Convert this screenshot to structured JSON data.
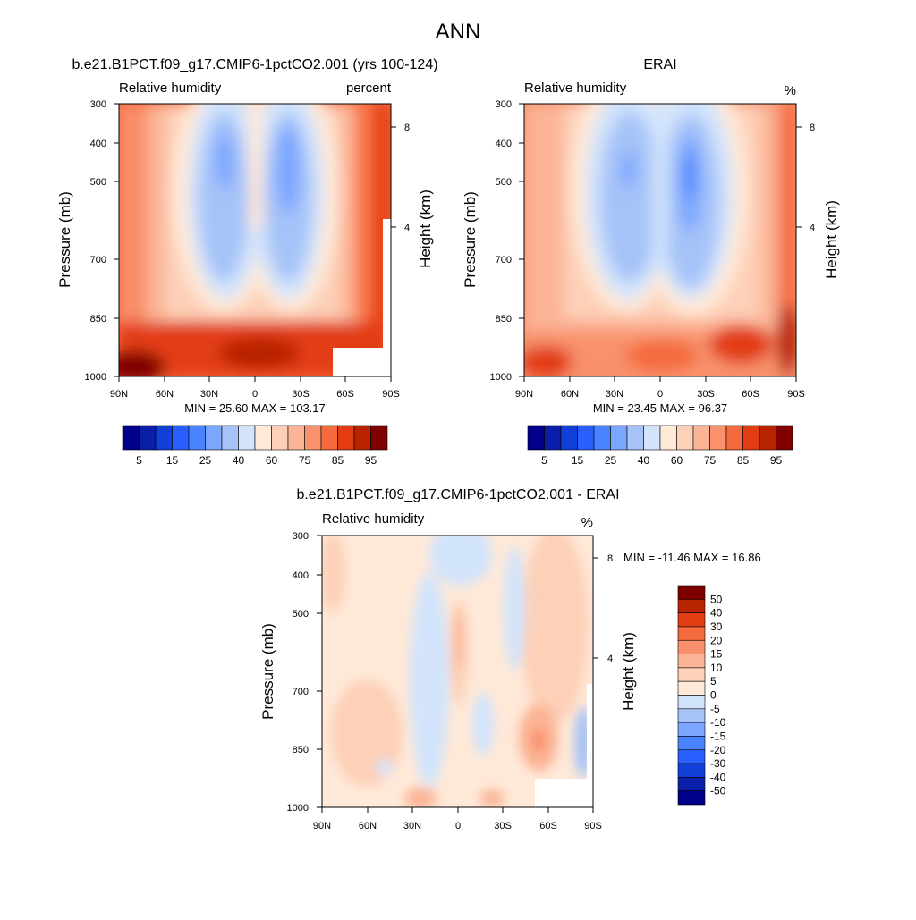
{
  "main_title": "ANN",
  "chart_data": [
    {
      "type": "heatmap",
      "id": "model",
      "title": "b.e21.B1PCT.f09_g17.CMIP6-1pctCO2.001 (yrs 100-124)",
      "left_label": "Relative humidity",
      "right_label": "percent",
      "ylabel": "Pressure (mb)",
      "ylabel_right": "Height (km)",
      "x_ticks": [
        "90N",
        "60N",
        "30N",
        "0",
        "30S",
        "60S",
        "90S"
      ],
      "y_ticks": [
        "300",
        "400",
        "500",
        "700",
        "850",
        "1000"
      ],
      "y_ticks_right": [
        "8",
        "4"
      ],
      "stats": "MIN =  25.60  MAX = 103.17",
      "colorbar_labels": [
        "5",
        "15",
        "25",
        "40",
        "60",
        "75",
        "85",
        "95"
      ],
      "ylim": [
        1000,
        300
      ],
      "xlim": [
        90,
        -90
      ]
    },
    {
      "type": "heatmap",
      "id": "obs",
      "title": "ERAI",
      "left_label": "Relative humidity",
      "right_label": "%",
      "ylabel": "Pressure (mb)",
      "ylabel_right": "Height (km)",
      "x_ticks": [
        "90N",
        "60N",
        "30N",
        "0",
        "30S",
        "60S",
        "90S"
      ],
      "y_ticks": [
        "300",
        "400",
        "500",
        "700",
        "850",
        "1000"
      ],
      "y_ticks_right": [
        "8",
        "4"
      ],
      "stats": "MIN =  23.45  MAX =  96.37",
      "colorbar_labels": [
        "5",
        "15",
        "25",
        "40",
        "60",
        "75",
        "85",
        "95"
      ],
      "ylim": [
        1000,
        300
      ],
      "xlim": [
        90,
        -90
      ]
    },
    {
      "type": "heatmap",
      "id": "diff",
      "title": "b.e21.B1PCT.f09_g17.CMIP6-1pctCO2.001 - ERAI",
      "left_label": "Relative humidity",
      "right_label": "%",
      "ylabel": "Pressure (mb)",
      "ylabel_right": "Height (km)",
      "x_ticks": [
        "90N",
        "60N",
        "30N",
        "0",
        "30S",
        "60S",
        "90S"
      ],
      "y_ticks": [
        "300",
        "400",
        "500",
        "700",
        "850",
        "1000"
      ],
      "y_ticks_right": [
        "8",
        "4"
      ],
      "stats": "MIN = -11.46  MAX =  16.86",
      "colorbar_labels": [
        "50",
        "40",
        "30",
        "20",
        "15",
        "10",
        "5",
        "0",
        "-5",
        "-10",
        "-15",
        "-20",
        "-30",
        "-40",
        "-50"
      ],
      "ylim": [
        1000,
        300
      ],
      "xlim": [
        90,
        -90
      ]
    }
  ],
  "colors": {
    "rh_scale": [
      "#00008a",
      "#0a1ea8",
      "#1040d8",
      "#2a5fff",
      "#4a82ff",
      "#7aa6ff",
      "#a6c3f8",
      "#d2e4fb",
      "#ffe9d8",
      "#fdd0b8",
      "#fbb495",
      "#f8916c",
      "#f56a3c",
      "#e23d12",
      "#b92400",
      "#800000"
    ],
    "diff_scale": [
      "#800000",
      "#b92400",
      "#e23d12",
      "#f56a3c",
      "#f8916c",
      "#fbb495",
      "#fdd0b8",
      "#ffe9d8",
      "#d2e4fb",
      "#a6c3f8",
      "#7aa6ff",
      "#4a82ff",
      "#2a5fff",
      "#1040d8",
      "#0a1ea8",
      "#00008a"
    ]
  }
}
